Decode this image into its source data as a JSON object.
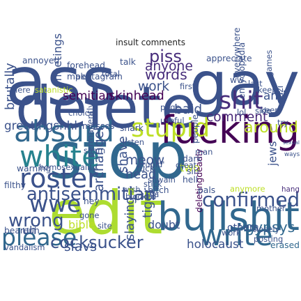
{
  "chart_data": {
    "type": "word_cloud",
    "title": "insult comments",
    "words": [
      {
        "text": "ass",
        "weight": 100,
        "color": "#3b528b"
      },
      {
        "text": "gay",
        "weight": 98,
        "color": "#3b528b"
      },
      {
        "text": "stop",
        "weight": 96,
        "color": "#31688e"
      },
      {
        "text": "delete",
        "weight": 85,
        "color": "#3b528b"
      },
      {
        "text": "edit",
        "weight": 88,
        "color": "#addc30"
      },
      {
        "text": "fucking",
        "weight": 70,
        "color": "#440154"
      },
      {
        "text": "bullshit",
        "weight": 62,
        "color": "#31688e"
      },
      {
        "text": "absurd",
        "weight": 40,
        "color": "#31688e"
      },
      {
        "text": "white",
        "weight": 40,
        "color": "#26828e"
      },
      {
        "text": "write",
        "weight": 40,
        "color": "#31688e"
      },
      {
        "text": "roster",
        "weight": 36,
        "color": "#3b528b"
      },
      {
        "text": "confirmed",
        "weight": 36,
        "color": "#3b528b"
      },
      {
        "text": "stupid",
        "weight": 34,
        "color": "#bddf26"
      },
      {
        "text": "shit",
        "weight": 32,
        "color": "#472d7b"
      },
      {
        "text": "please",
        "weight": 30,
        "color": "#31688e"
      },
      {
        "text": "wwe",
        "weight": 30,
        "color": "#3b528b"
      },
      {
        "text": "wrong",
        "weight": 22,
        "color": "#3b528b"
      },
      {
        "text": "antisemmitian",
        "weight": 22,
        "color": "#3b528b"
      },
      {
        "text": "piss",
        "weight": 20,
        "color": "#472d7b"
      },
      {
        "text": "cocksucker",
        "weight": 20,
        "color": "#3b528b"
      },
      {
        "text": "around",
        "weight": 18,
        "color": "#bddf26"
      },
      {
        "text": "gypsys",
        "weight": 16,
        "color": "#31688e"
      },
      {
        "text": "words",
        "weight": 16,
        "color": "#472d7b"
      },
      {
        "text": "anyone",
        "weight": 14,
        "color": "#472d7b"
      },
      {
        "text": "work",
        "weight": 14,
        "color": "#3b528b"
      },
      {
        "text": "bald",
        "weight": 14,
        "color": "#3b528b"
      },
      {
        "text": "comment",
        "weight": 14,
        "color": "#482878"
      },
      {
        "text": "ways",
        "weight": 14,
        "color": "#3b528b"
      },
      {
        "text": "hang",
        "weight": 13,
        "color": "#472d7b"
      },
      {
        "text": "meow",
        "weight": 14,
        "color": "#3b528b"
      },
      {
        "text": "head",
        "weight": 13,
        "color": "#3b528b"
      },
      {
        "text": "shave",
        "weight": 13,
        "color": "#3b528b"
      },
      {
        "text": "tiger",
        "weight": 14,
        "color": "#3b528b"
      },
      {
        "text": "slaying",
        "weight": 13,
        "color": "#3b528b"
      },
      {
        "text": "archangel",
        "weight": 14,
        "color": "#3b528b"
      },
      {
        "text": "brutally",
        "weight": 13,
        "color": "#3b528b"
      },
      {
        "text": "slavs",
        "weight": 14,
        "color": "#3b528b"
      },
      {
        "text": "holocaust",
        "weight": 12,
        "color": "#3b528b"
      },
      {
        "text": "erased",
        "weight": 12,
        "color": "#31688e"
      },
      {
        "text": "skinhead",
        "weight": 13,
        "color": "#440154"
      },
      {
        "text": "semitian",
        "weight": 12,
        "color": "#440154"
      },
      {
        "text": "anti",
        "weight": 12,
        "color": "#3b528b"
      },
      {
        "text": "greetingshhh",
        "weight": 12,
        "color": "#3b528b"
      },
      {
        "text": "meetings",
        "weight": 11,
        "color": "#3b528b"
      },
      {
        "text": "two",
        "weight": 11,
        "color": "#bddf26"
      },
      {
        "text": "jews",
        "weight": 11,
        "color": "#3b528b"
      },
      {
        "text": "bible",
        "weight": 11,
        "color": "#bddf26"
      },
      {
        "text": "doubt",
        "weight": 11,
        "color": "#3b528b"
      },
      {
        "text": "others",
        "weight": 9,
        "color": "#3b528b"
      },
      {
        "text": "encyclopedia",
        "weight": 7,
        "color": "#3b528b"
      },
      {
        "text": "nazi",
        "weight": 7,
        "color": "#3b528b"
      },
      {
        "text": "deletingdeadly",
        "weight": 7,
        "color": "#440154"
      },
      {
        "text": "permanently",
        "weight": 7,
        "color": "#3b528b"
      },
      {
        "text": "forehead",
        "weight": 7,
        "color": "#3b528b"
      },
      {
        "text": "talk",
        "weight": 7,
        "color": "#3b528b"
      },
      {
        "text": "pentagram",
        "weight": 7,
        "color": "#3b528b"
      },
      {
        "text": "make",
        "weight": 7,
        "color": "#3b528b"
      },
      {
        "text": "annoyed",
        "weight": 7,
        "color": "#3b528b"
      },
      {
        "text": "appreciate",
        "weight": 7,
        "color": "#3b528b"
      },
      {
        "text": "satanistic",
        "weight": 6,
        "color": "#bddf26"
      },
      {
        "text": "masses",
        "weight": 7,
        "color": "#3b528b"
      },
      {
        "text": "shark",
        "weight": 7,
        "color": "#3b528b"
      },
      {
        "text": "people",
        "weight": 7,
        "color": "#3b528b"
      },
      {
        "text": "everywhere",
        "weight": 7,
        "color": "#3b528b"
      },
      {
        "text": "sexual",
        "weight": 6,
        "color": "#3b528b"
      },
      {
        "text": "warning",
        "weight": 7,
        "color": "#3b528b"
      },
      {
        "text": "homosexuality",
        "weight": 6,
        "color": "#3b528b"
      },
      {
        "text": "filthy",
        "weight": 7,
        "color": "#3b528b"
      },
      {
        "text": "bitch",
        "weight": 7,
        "color": "#3b528b"
      },
      {
        "text": "pals",
        "weight": 7,
        "color": "#3b528b"
      },
      {
        "text": "dark",
        "weight": 7,
        "color": "#3b528b"
      },
      {
        "text": "great",
        "weight": 6,
        "color": "#3b528b"
      },
      {
        "text": "fuck",
        "weight": 7,
        "color": "#3b528b"
      },
      {
        "text": "stupid'",
        "weight": 6,
        "color": "#3b528b"
      },
      {
        "text": "hell",
        "weight": 7,
        "color": "#3b528b"
      },
      {
        "text": "sin",
        "weight": 7,
        "color": "#3b528b"
      },
      {
        "text": "beareuh",
        "weight": 7,
        "color": "#3b528b"
      },
      {
        "text": "hey",
        "weight": 7,
        "color": "#3b528b"
      },
      {
        "text": "mother",
        "weight": 6,
        "color": "#3b528b"
      },
      {
        "text": "work",
        "weight": 6,
        "color": "#3b528b"
      },
      {
        "text": "posting",
        "weight": 6,
        "color": "#3b528b"
      },
      {
        "text": "vandalism",
        "weight": 6,
        "color": "#3b528b"
      },
      {
        "text": "page",
        "weight": 6,
        "color": "#3b528b"
      },
      {
        "text": "useful",
        "weight": 6,
        "color": "#3b528b"
      },
      {
        "text": "total",
        "weight": 6,
        "color": "#3b528b"
      },
      {
        "text": "first",
        "weight": 6,
        "color": "#3b528b"
      },
      {
        "text": "last",
        "weight": 6,
        "color": "#3b528b"
      },
      {
        "text": "keep",
        "weight": 6,
        "color": "#3b528b"
      },
      {
        "text": "keep",
        "weight": 6,
        "color": "#3b528b"
      },
      {
        "text": "choice",
        "weight": 6,
        "color": "#3b528b"
      },
      {
        "text": "spam",
        "weight": 6,
        "color": "#3b528b"
      },
      {
        "text": "shwain",
        "weight": 6,
        "color": "#3b528b"
      },
      {
        "text": "stick",
        "weight": 6,
        "color": "#3b528b"
      },
      {
        "text": "here",
        "weight": 6,
        "color": "#3b528b"
      },
      {
        "text": "games",
        "weight": 6,
        "color": "#3b528b"
      },
      {
        "text": "anymore",
        "weight": 6,
        "color": "#bddf26"
      },
      {
        "text": "listen",
        "weight": 6,
        "color": "#3b528b"
      },
      {
        "text": "side",
        "weight": 6,
        "color": "#3b528b"
      },
      {
        "text": "blocked",
        "weight": 6,
        "color": "#3b528b"
      },
      {
        "text": "wish",
        "weight": 6,
        "color": "#3b528b"
      },
      {
        "text": "gone",
        "weight": 6,
        "color": "#3b528b"
      },
      {
        "text": "site",
        "weight": 6,
        "color": "#3b528b"
      },
      {
        "text": "closely",
        "weight": 6,
        "color": "#3b528b"
      },
      {
        "text": "try",
        "weight": 6,
        "color": "#3b528b"
      },
      {
        "text": "ww",
        "weight": 7,
        "color": "#3b528b"
      },
      {
        "text": "uh",
        "weight": 11,
        "color": "#3b528b"
      },
      {
        "text": "ha",
        "weight": 6,
        "color": "#3b528b"
      },
      {
        "text": "man",
        "weight": 6,
        "color": "#3b528b"
      },
      {
        "text": "lol",
        "weight": 6,
        "color": "#3b528b"
      }
    ]
  }
}
